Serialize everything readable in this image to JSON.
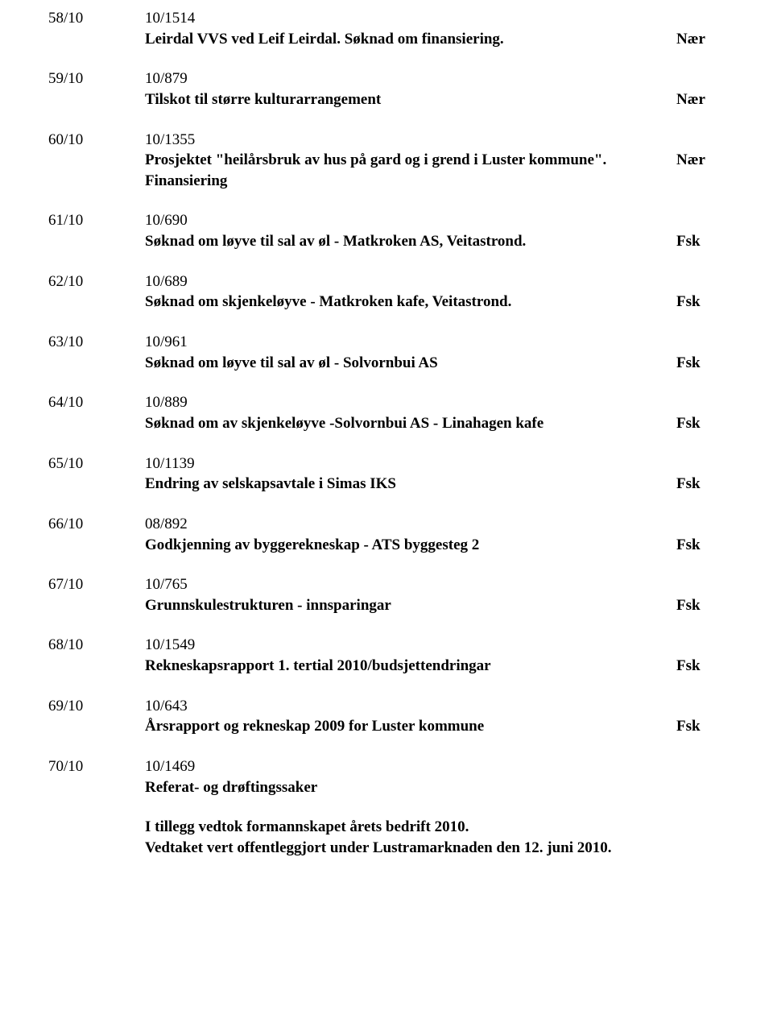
{
  "entries": [
    {
      "num": "58/10",
      "docnum": "10/1514",
      "title": "Leirdal VVS ved Leif Leirdal. Søknad om finansiering.",
      "tag": "Nær"
    },
    {
      "num": "59/10",
      "docnum": "10/879",
      "title": "Tilskot til større kulturarrangement",
      "tag": "Nær"
    },
    {
      "num": "60/10",
      "docnum": "10/1355",
      "title": "Prosjektet \"heilårsbruk av hus på gard og i grend i Luster kommune\". Finansiering",
      "tag": "Nær"
    },
    {
      "num": "61/10",
      "docnum": "10/690",
      "title": "Søknad om løyve til sal av øl - Matkroken AS, Veitastrond.",
      "tag": "Fsk"
    },
    {
      "num": "62/10",
      "docnum": "10/689",
      "title": "Søknad om skjenkeløyve - Matkroken kafe, Veitastrond.",
      "tag": "Fsk"
    },
    {
      "num": "63/10",
      "docnum": "10/961",
      "title": "Søknad om løyve til sal av øl - Solvornbui AS",
      "tag": "Fsk"
    },
    {
      "num": "64/10",
      "docnum": "10/889",
      "title": "Søknad om av skjenkeløyve -Solvornbui AS - Linahagen kafe",
      "tag": "Fsk"
    },
    {
      "num": "65/10",
      "docnum": "10/1139",
      "title": "Endring av selskapsavtale i Simas IKS",
      "tag": "Fsk"
    },
    {
      "num": "66/10",
      "docnum": "08/892",
      "title": "Godkjenning av byggerekneskap - ATS byggesteg 2",
      "tag": "Fsk"
    },
    {
      "num": "67/10",
      "docnum": "10/765",
      "title": "Grunnskulestrukturen - innsparingar",
      "tag": "Fsk"
    },
    {
      "num": "68/10",
      "docnum": "10/1549",
      "title": "Rekneskapsrapport 1. tertial 2010/budsjettendringar",
      "tag": "Fsk"
    },
    {
      "num": "69/10",
      "docnum": "10/643",
      "title": "Årsrapport og rekneskap 2009 for Luster kommune",
      "tag": "Fsk"
    },
    {
      "num": "70/10",
      "docnum": "10/1469",
      "title": "Referat- og drøftingssaker",
      "tag": ""
    }
  ],
  "footer_line1": "I tillegg vedtok formannskapet årets bedrift 2010.",
  "footer_line2": "Vedtaket vert offentleggjort under Lustramarknaden den 12. juni 2010."
}
